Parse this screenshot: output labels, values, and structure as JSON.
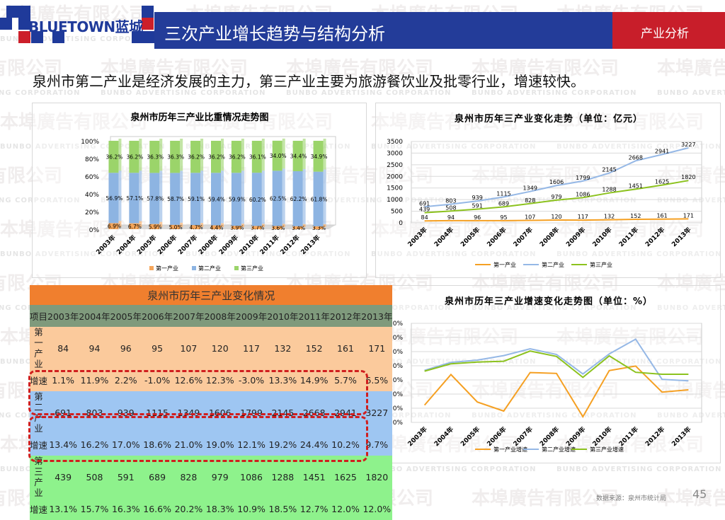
{
  "watermark": {
    "cn": "本埠廣告有限公司",
    "en": "BUNBO ADVERTISING CORPORATION"
  },
  "header": {
    "logo": "BLUETOWN蓝城",
    "title": "三次产业增长趋势与结构分析",
    "tag": "产业分析"
  },
  "subtitle": "泉州市第二产业是经济发展的主力，第三产业主要为旅游餐饮业及批零行业，增速较快。",
  "colors": {
    "primary": "#F5A65B",
    "secondary": "#8DB4E2",
    "tertiary": "#9BD46A",
    "line1": "#F5A023",
    "line2": "#95B8E6",
    "line3": "#8CC21E"
  },
  "chart_data": [
    {
      "type": "bar",
      "stacked": "percent",
      "title": "泉州市历年三产业比重情况走势图",
      "categories": [
        "2003年",
        "2004年",
        "2005年",
        "2006年",
        "2007年",
        "2008年",
        "2009年",
        "2010年",
        "2011年",
        "2012年",
        "2013年"
      ],
      "yticks": [
        "0%",
        "20%",
        "40%",
        "60%",
        "80%",
        "100%"
      ],
      "ylim": [
        0,
        100
      ],
      "series": [
        {
          "name": "第一产业",
          "labels": [
            "6.9%",
            "6.7%",
            "5.9%",
            "5.0%",
            "4.7%",
            "4.4%",
            "3.9%",
            "3.7%",
            "3.6%",
            "3.4%",
            "3.3%"
          ],
          "values": [
            6.9,
            6.7,
            5.9,
            5.0,
            4.7,
            4.4,
            3.9,
            3.7,
            3.6,
            3.4,
            3.3
          ]
        },
        {
          "name": "第二产业",
          "labels": [
            "56.9%",
            "57.1%",
            "57.8%",
            "58.7%",
            "59.1%",
            "59.4%",
            "59.9%",
            "60.2%",
            "62.5%",
            "62.2%",
            "61.8%"
          ],
          "values": [
            56.9,
            57.1,
            57.8,
            58.7,
            59.1,
            59.4,
            59.9,
            60.2,
            62.5,
            62.2,
            61.8
          ]
        },
        {
          "name": "第三产业",
          "labels": [
            "36.2%",
            "36.2%",
            "36.3%",
            "36.3%",
            "36.2%",
            "36.2%",
            "36.2%",
            "36.1%",
            "34.0%",
            "34.4%",
            "34.9%"
          ],
          "values": [
            36.2,
            36.2,
            36.3,
            36.3,
            36.2,
            36.2,
            36.2,
            36.1,
            34.0,
            34.4,
            34.9
          ]
        }
      ],
      "legend": "bottom",
      "grid": false
    },
    {
      "type": "line",
      "title": "泉州市历年三产业变化走势（单位：亿元）",
      "categories": [
        "2003年",
        "2004年",
        "2005年",
        "2006年",
        "2007年",
        "2008年",
        "2009年",
        "2010年",
        "2011年",
        "2012年",
        "2013年"
      ],
      "yticks": [
        "0",
        "500",
        "1000",
        "1500",
        "2000",
        "2500",
        "3000",
        "3500"
      ],
      "ylim": [
        0,
        3500
      ],
      "series": [
        {
          "name": "第一产业",
          "values": [
            84,
            94,
            96,
            95,
            107,
            120,
            117,
            132,
            152,
            161,
            171
          ]
        },
        {
          "name": "第二产业",
          "values": [
            691,
            803,
            939,
            1115,
            1349,
            1606,
            1799,
            2145,
            2668,
            2941,
            3227
          ]
        },
        {
          "name": "第三产业",
          "values": [
            439,
            508,
            591,
            689,
            828,
            979,
            1086,
            1288,
            1451,
            1625,
            1820
          ]
        }
      ],
      "legend": "bottom",
      "grid": true
    },
    {
      "type": "line",
      "title": "泉州市历年三产业增速变化走势图（单位：%）",
      "categories": [
        "2003年",
        "2004年",
        "2005年",
        "2006年",
        "2007年",
        "2008年",
        "2009年",
        "2010年",
        "2011年",
        "2012年",
        "2013年"
      ],
      "yticks": [
        "-5.0%",
        "0.0%",
        "5.0%",
        "10.0%",
        "15.0%",
        "20.0%",
        "25.0%",
        "30.0%"
      ],
      "ylim": [
        -5,
        30
      ],
      "series": [
        {
          "name": "第一产业增速",
          "values": [
            1.1,
            11.9,
            2.2,
            -1.0,
            12.6,
            12.3,
            -3.0,
            13.3,
            14.9,
            5.7,
            6.5
          ]
        },
        {
          "name": "第二产业增速",
          "values": [
            13.4,
            16.2,
            17.0,
            18.6,
            21.0,
            19.0,
            12.1,
            19.2,
            24.4,
            10.2,
            9.7
          ]
        },
        {
          "name": "第三产业增速",
          "values": [
            13.1,
            15.7,
            16.3,
            16.6,
            20.2,
            18.3,
            10.9,
            18.5,
            12.7,
            12.0,
            12.0
          ]
        }
      ],
      "legend": "bottom",
      "grid": true
    }
  ],
  "table": {
    "title": "泉州市历年三产业变化情况",
    "headers": [
      "项目",
      "2003年",
      "2004年",
      "2005年",
      "2006年",
      "2007年",
      "2008年",
      "2009年",
      "2010年",
      "2011年",
      "2012年",
      "2013年"
    ],
    "groups": [
      {
        "label": "第一产业",
        "values": [
          "84",
          "94",
          "96",
          "95",
          "107",
          "120",
          "117",
          "132",
          "152",
          "161",
          "171"
        ],
        "growth_label": "增速",
        "growth": [
          "1.1%",
          "11.9%",
          "2.2%",
          "-1.0%",
          "12.6%",
          "12.3%",
          "-3.0%",
          "13.3%",
          "14.9%",
          "5.7%",
          "6.5%"
        ]
      },
      {
        "label": "第二产业",
        "values": [
          "691",
          "803",
          "939",
          "1115",
          "1349",
          "1606",
          "1799",
          "2145",
          "2668",
          "2941",
          "3227"
        ],
        "growth_label": "增速",
        "growth": [
          "13.4%",
          "16.2%",
          "17.0%",
          "18.6%",
          "21.0%",
          "19.0%",
          "12.1%",
          "19.2%",
          "24.4%",
          "10.2%",
          "9.7%"
        ]
      },
      {
        "label": "第三产业",
        "values": [
          "439",
          "508",
          "591",
          "689",
          "828",
          "979",
          "1086",
          "1288",
          "1451",
          "1625",
          "1820"
        ],
        "growth_label": "增速",
        "growth": [
          "13.1%",
          "15.7%",
          "16.3%",
          "16.6%",
          "20.2%",
          "18.3%",
          "10.9%",
          "18.5%",
          "12.7%",
          "12.0%",
          "12.0%"
        ]
      }
    ]
  },
  "footer": {
    "source": "数据来源：泉州市统计局",
    "page": "45"
  }
}
